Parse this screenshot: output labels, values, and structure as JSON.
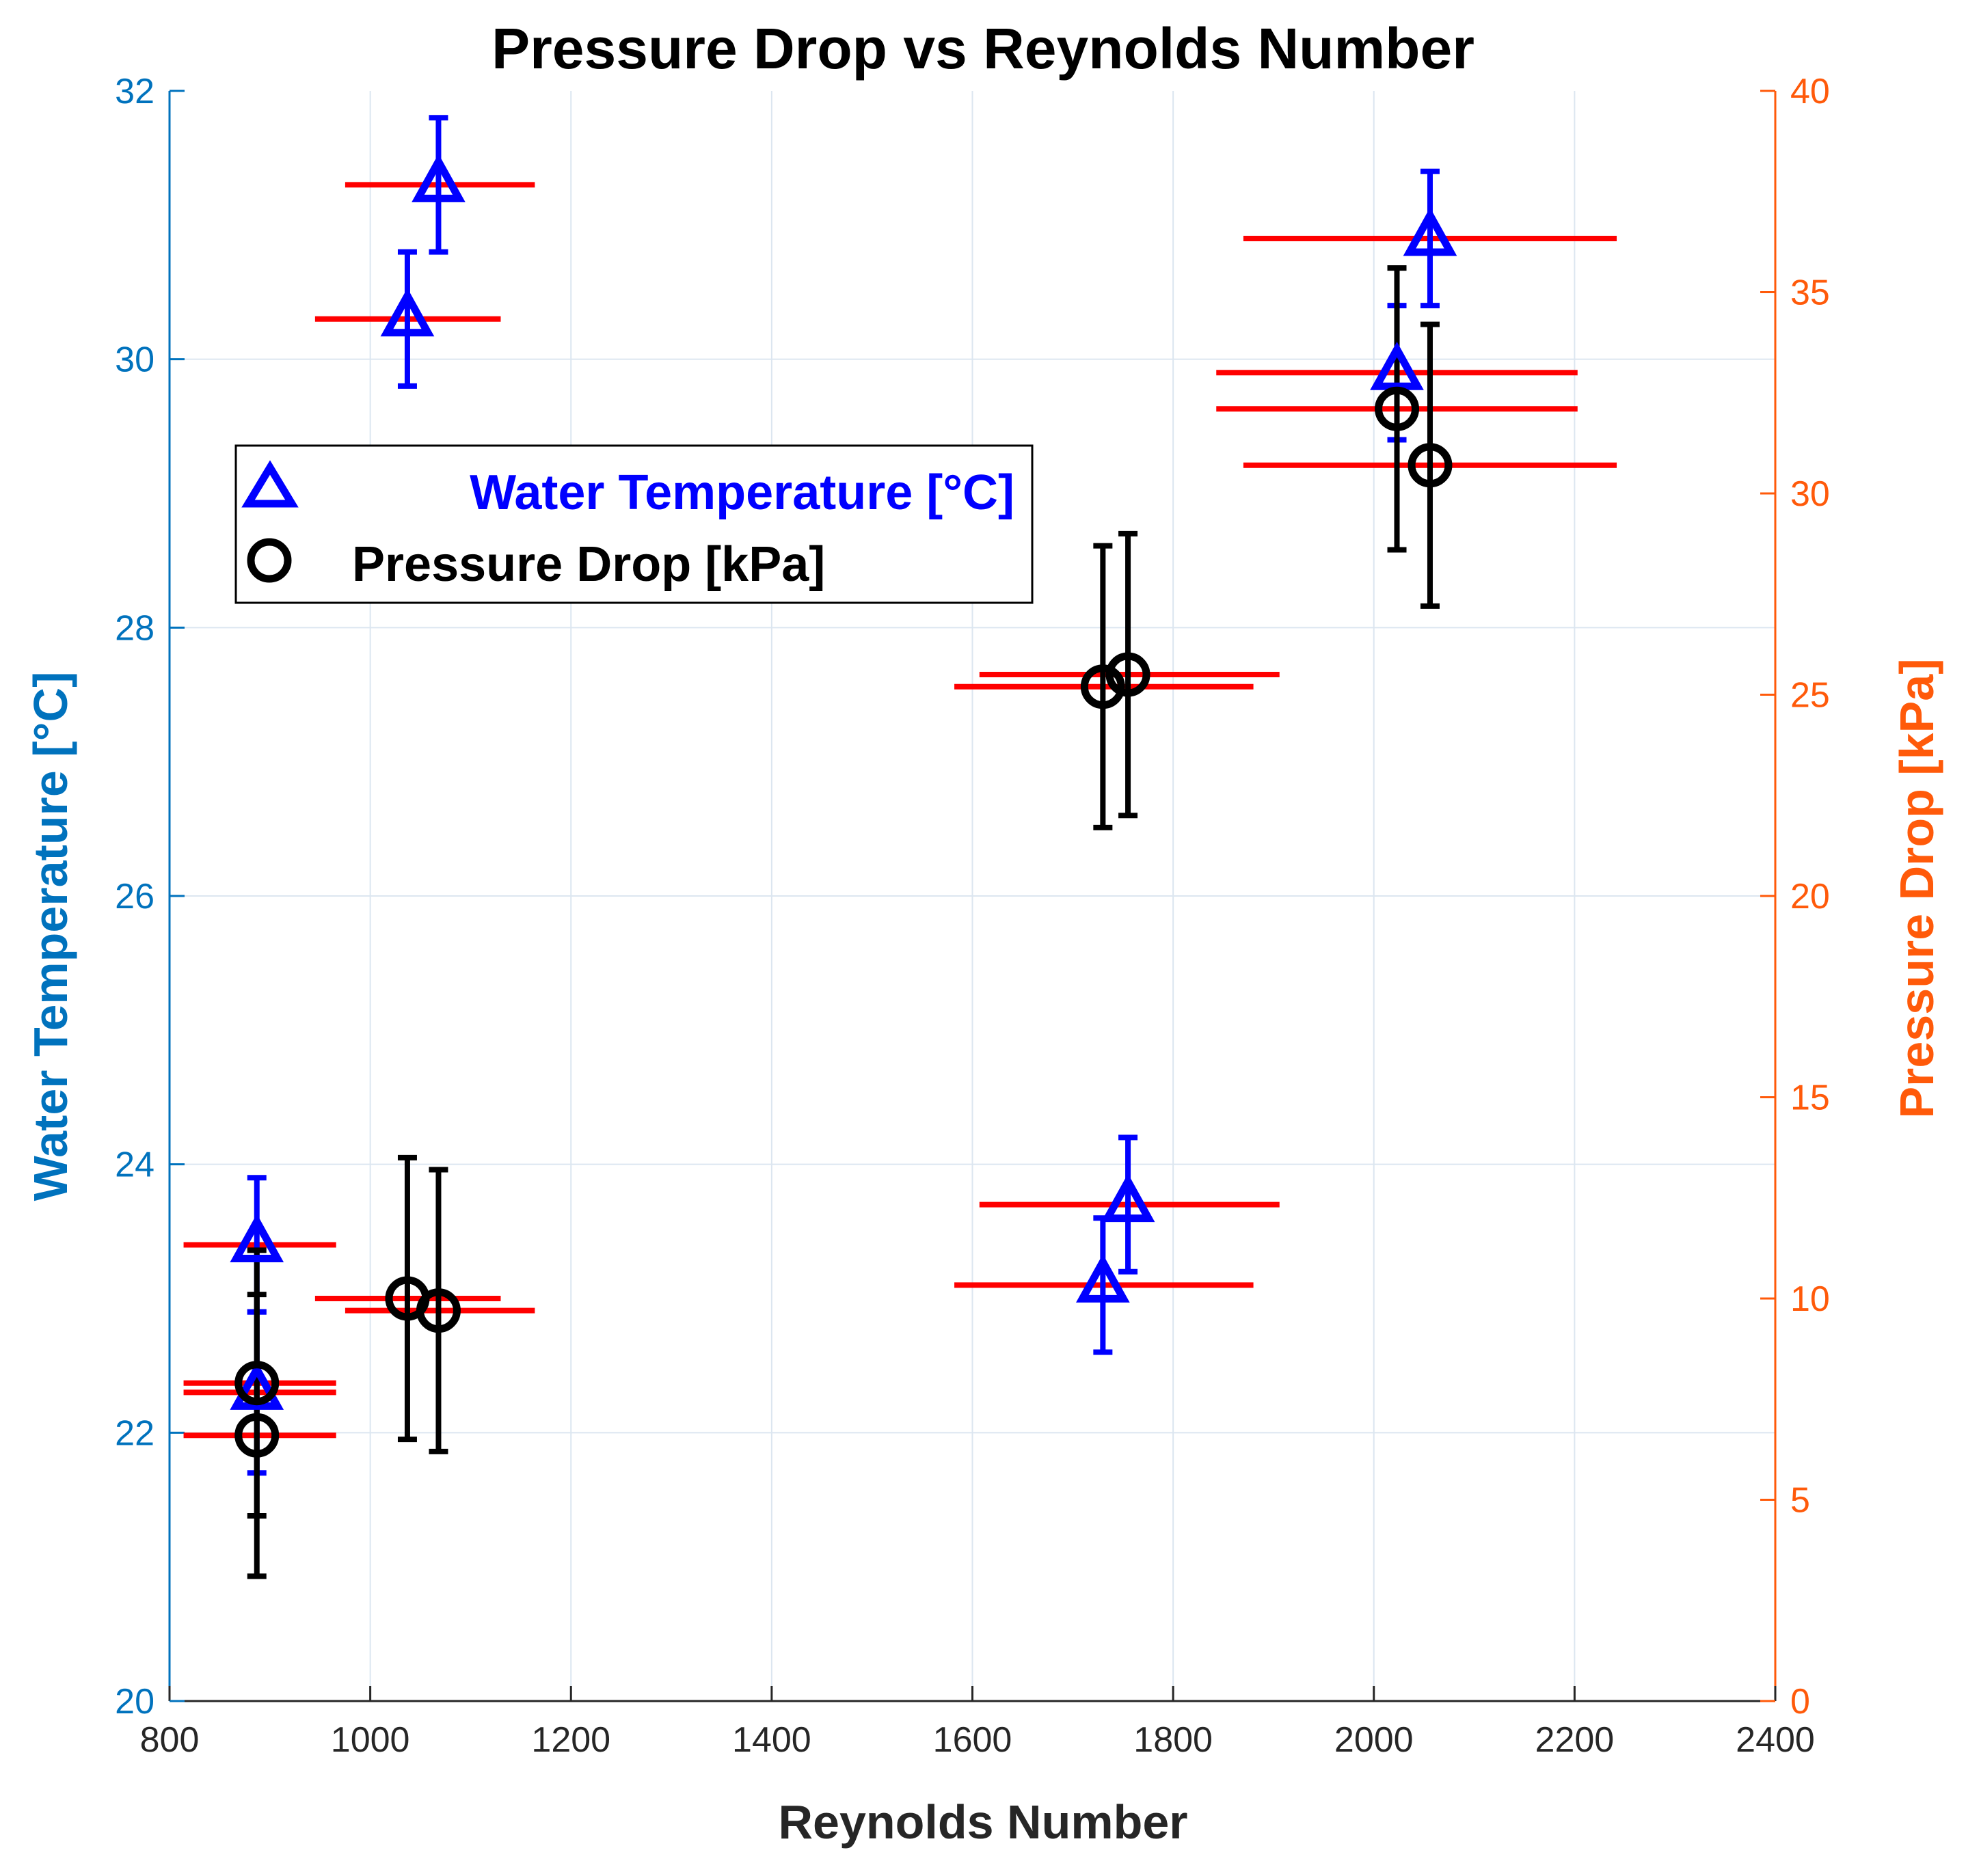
{
  "chart_data": {
    "type": "scatter",
    "title": "Pressure Drop vs Reynolds Number",
    "xlabel": "Reynolds Number",
    "ylabel_left": "Water Temperature [°C]",
    "ylabel_right": "Pressure Drop [kPa]",
    "xlim": [
      800,
      2400
    ],
    "ylim_left": [
      20,
      32
    ],
    "ylim_right": [
      0,
      40
    ],
    "xticks": [
      800,
      1000,
      1200,
      1400,
      1600,
      1800,
      2000,
      2200,
      2400
    ],
    "yticks_left": [
      20,
      22,
      24,
      26,
      28,
      30,
      32
    ],
    "yticks_right": [
      0,
      5,
      10,
      15,
      20,
      25,
      30,
      35,
      40
    ],
    "grid": true,
    "legend_position": "upper-left",
    "legend": [
      {
        "label": "Water Temperature [°C]",
        "marker": "triangle",
        "color": "#0000FF"
      },
      {
        "label": "Pressure Drop [kPa]",
        "marker": "circle",
        "color": "#000000"
      }
    ],
    "colors": {
      "left_axis": "#0072BD",
      "right_axis": "#FF5A0A",
      "temperature": "#0000FF",
      "pressure": "#000000",
      "x_error": "#FF0000",
      "grid": "#DCE6F0",
      "axis_black": "#262626"
    },
    "series": [
      {
        "name": "Water Temperature [°C]",
        "axis": "left",
        "points": [
          {
            "x": 887,
            "y": 23.4,
            "yerr": 0.5
          },
          {
            "x": 887,
            "y": 22.3,
            "yerr": 0.6
          },
          {
            "x": 1037,
            "y": 30.3,
            "yerr": 0.5
          },
          {
            "x": 1068,
            "y": 31.3,
            "yerr": 0.5
          },
          {
            "x": 1730,
            "y": 23.1,
            "yerr": 0.5
          },
          {
            "x": 1755,
            "y": 23.7,
            "yerr": 0.5
          },
          {
            "x": 2023,
            "y": 29.9,
            "yerr": 0.5
          },
          {
            "x": 2056,
            "y": 30.9,
            "yerr": 0.5
          }
        ]
      },
      {
        "name": "Pressure Drop [kPa]",
        "axis": "right",
        "points": [
          {
            "x": 887,
            "y": 7.9,
            "yerr": 3.3
          },
          {
            "x": 887,
            "y": 6.6,
            "yerr": 3.5
          },
          {
            "x": 1037,
            "y": 10.0,
            "yerr": 3.5
          },
          {
            "x": 1068,
            "y": 9.7,
            "yerr": 3.5
          },
          {
            "x": 1730,
            "y": 25.2,
            "yerr": 3.5
          },
          {
            "x": 1755,
            "y": 25.5,
            "yerr": 3.5
          },
          {
            "x": 2023,
            "y": 32.1,
            "yerr": 3.5
          },
          {
            "x": 2056,
            "y": 30.7,
            "yerr": 3.5
          }
        ]
      }
    ],
    "x_error_bars": [
      {
        "axis": "left",
        "y": 23.4,
        "xmin": 814,
        "xmax": 966
      },
      {
        "axis": "left",
        "y": 22.3,
        "xmin": 814,
        "xmax": 966
      },
      {
        "axis": "left",
        "y": 30.3,
        "xmin": 945,
        "xmax": 1130
      },
      {
        "axis": "left",
        "y": 31.3,
        "xmin": 975,
        "xmax": 1164
      },
      {
        "axis": "left",
        "y": 23.1,
        "xmin": 1582,
        "xmax": 1880
      },
      {
        "axis": "left",
        "y": 23.7,
        "xmin": 1607,
        "xmax": 1906
      },
      {
        "axis": "left",
        "y": 29.9,
        "xmin": 1843,
        "xmax": 2203
      },
      {
        "axis": "left",
        "y": 30.9,
        "xmin": 1870,
        "xmax": 2242
      },
      {
        "axis": "right",
        "y": 7.9,
        "xmin": 814,
        "xmax": 966
      },
      {
        "axis": "right",
        "y": 6.6,
        "xmin": 814,
        "xmax": 966
      },
      {
        "axis": "right",
        "y": 10.0,
        "xmin": 945,
        "xmax": 1130
      },
      {
        "axis": "right",
        "y": 9.7,
        "xmin": 975,
        "xmax": 1164
      },
      {
        "axis": "right",
        "y": 25.2,
        "xmin": 1582,
        "xmax": 1880
      },
      {
        "axis": "right",
        "y": 25.5,
        "xmin": 1607,
        "xmax": 1906
      },
      {
        "axis": "right",
        "y": 32.1,
        "xmin": 1843,
        "xmax": 2203
      },
      {
        "axis": "right",
        "y": 30.7,
        "xmin": 1870,
        "xmax": 2242
      }
    ]
  }
}
